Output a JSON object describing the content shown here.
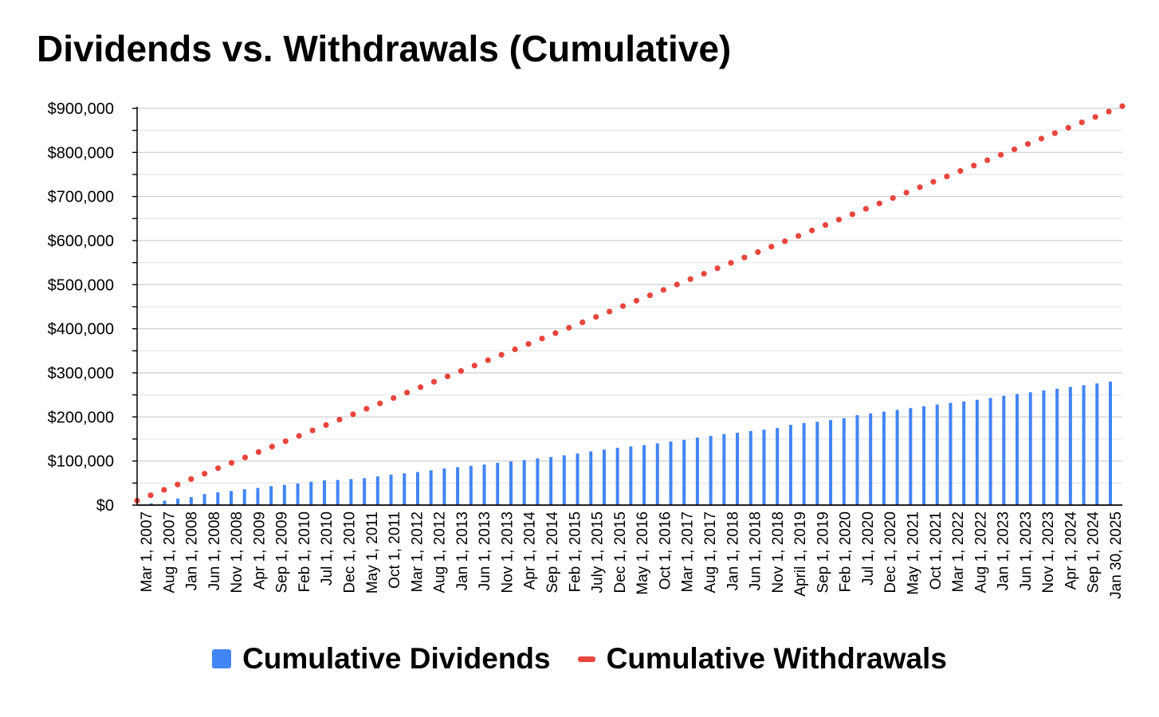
{
  "colors": {
    "dividends": "#4285F4",
    "withdrawals": "#E8453C",
    "grid": "#d0d0d0",
    "axis": "#000000"
  },
  "chart_data": {
    "type": "bar",
    "title": "Dividends vs. Withdrawals (Cumulative)",
    "xlabel": "",
    "ylabel": "",
    "ylim": [
      0,
      900000
    ],
    "y_ticks": [
      0,
      100000,
      200000,
      300000,
      400000,
      500000,
      600000,
      700000,
      800000,
      900000
    ],
    "y_tick_labels": [
      "$0",
      "$100,000",
      "$200,000",
      "$300,000",
      "$400,000",
      "$500,000",
      "$600,000",
      "$700,000",
      "$800,000",
      "$900,000"
    ],
    "gridlines": true,
    "legend_position": "bottom",
    "x_tick_labels": [
      "Mar 1, 2007",
      "Aug 1, 2007",
      "Jan 1, 2008",
      "Jun 1, 2008",
      "Nov 1, 2008",
      "Apr 1, 2009",
      "Sep 1, 2009",
      "Feb 1, 2010",
      "Jul 1, 2010",
      "Dec 1, 2010",
      "May 1, 2011",
      "Oct 1, 2011",
      "Mar 1, 2012",
      "Aug 1, 2012",
      "Jan 1, 2013",
      "Jun 1, 2013",
      "Nov 1, 2013",
      "Apr 1, 2014",
      "Sep 1, 2014",
      "Feb 1, 2015",
      "July 1, 2015",
      "Dec 1, 2015",
      "May 1, 2016",
      "Oct 1, 2016",
      "Mar 1, 2017",
      "Aug 1, 2017",
      "Jan 1, 2018",
      "Jun 1, 2018",
      "Nov 1, 2018",
      "April 1, 2019",
      "Sep 1, 2019",
      "Feb 1, 2020",
      "Jul 1, 2020",
      "Dec 1, 2020",
      "May 1, 2021",
      "Oct 1, 2021",
      "Mar 1, 2022",
      "Aug 1, 2022",
      "Jan 1, 2023",
      "Jun 1, 2023",
      "Nov 1, 2023",
      "Apr 1, 2024",
      "Sep 1, 2024",
      "Jan 30, 2025"
    ],
    "series": [
      {
        "name": "Cumulative Dividends",
        "type": "bar",
        "values": [
          0,
          4000,
          10000,
          15000,
          18000,
          25000,
          29000,
          32000,
          36000,
          39000,
          43000,
          46000,
          49000,
          53000,
          56000,
          57000,
          59000,
          61000,
          65000,
          69000,
          72000,
          75000,
          79000,
          83000,
          86000,
          89000,
          92000,
          96000,
          99000,
          102000,
          106000,
          109000,
          113000,
          117000,
          122000,
          126000,
          130000,
          133000,
          136000,
          140000,
          144000,
          148000,
          153000,
          157000,
          161000,
          164000,
          168000,
          171000,
          175000,
          182000,
          186000,
          189000,
          193000,
          197000,
          204000,
          208000,
          212000,
          216000,
          220000,
          224000,
          228000,
          232000,
          235000,
          239000,
          243000,
          248000,
          252000,
          256000,
          260000,
          264000,
          268000,
          272000,
          276000,
          280000
        ]
      },
      {
        "name": "Cumulative Withdrawals",
        "type": "line",
        "style": "dotted",
        "x_start": "Mar 1, 2007",
        "x_end": "Jan 30, 2025",
        "y_start": 10000,
        "y_end": 905000
      }
    ]
  },
  "legend": {
    "dividends_label": "Cumulative Dividends",
    "withdrawals_label": "Cumulative Withdrawals"
  }
}
